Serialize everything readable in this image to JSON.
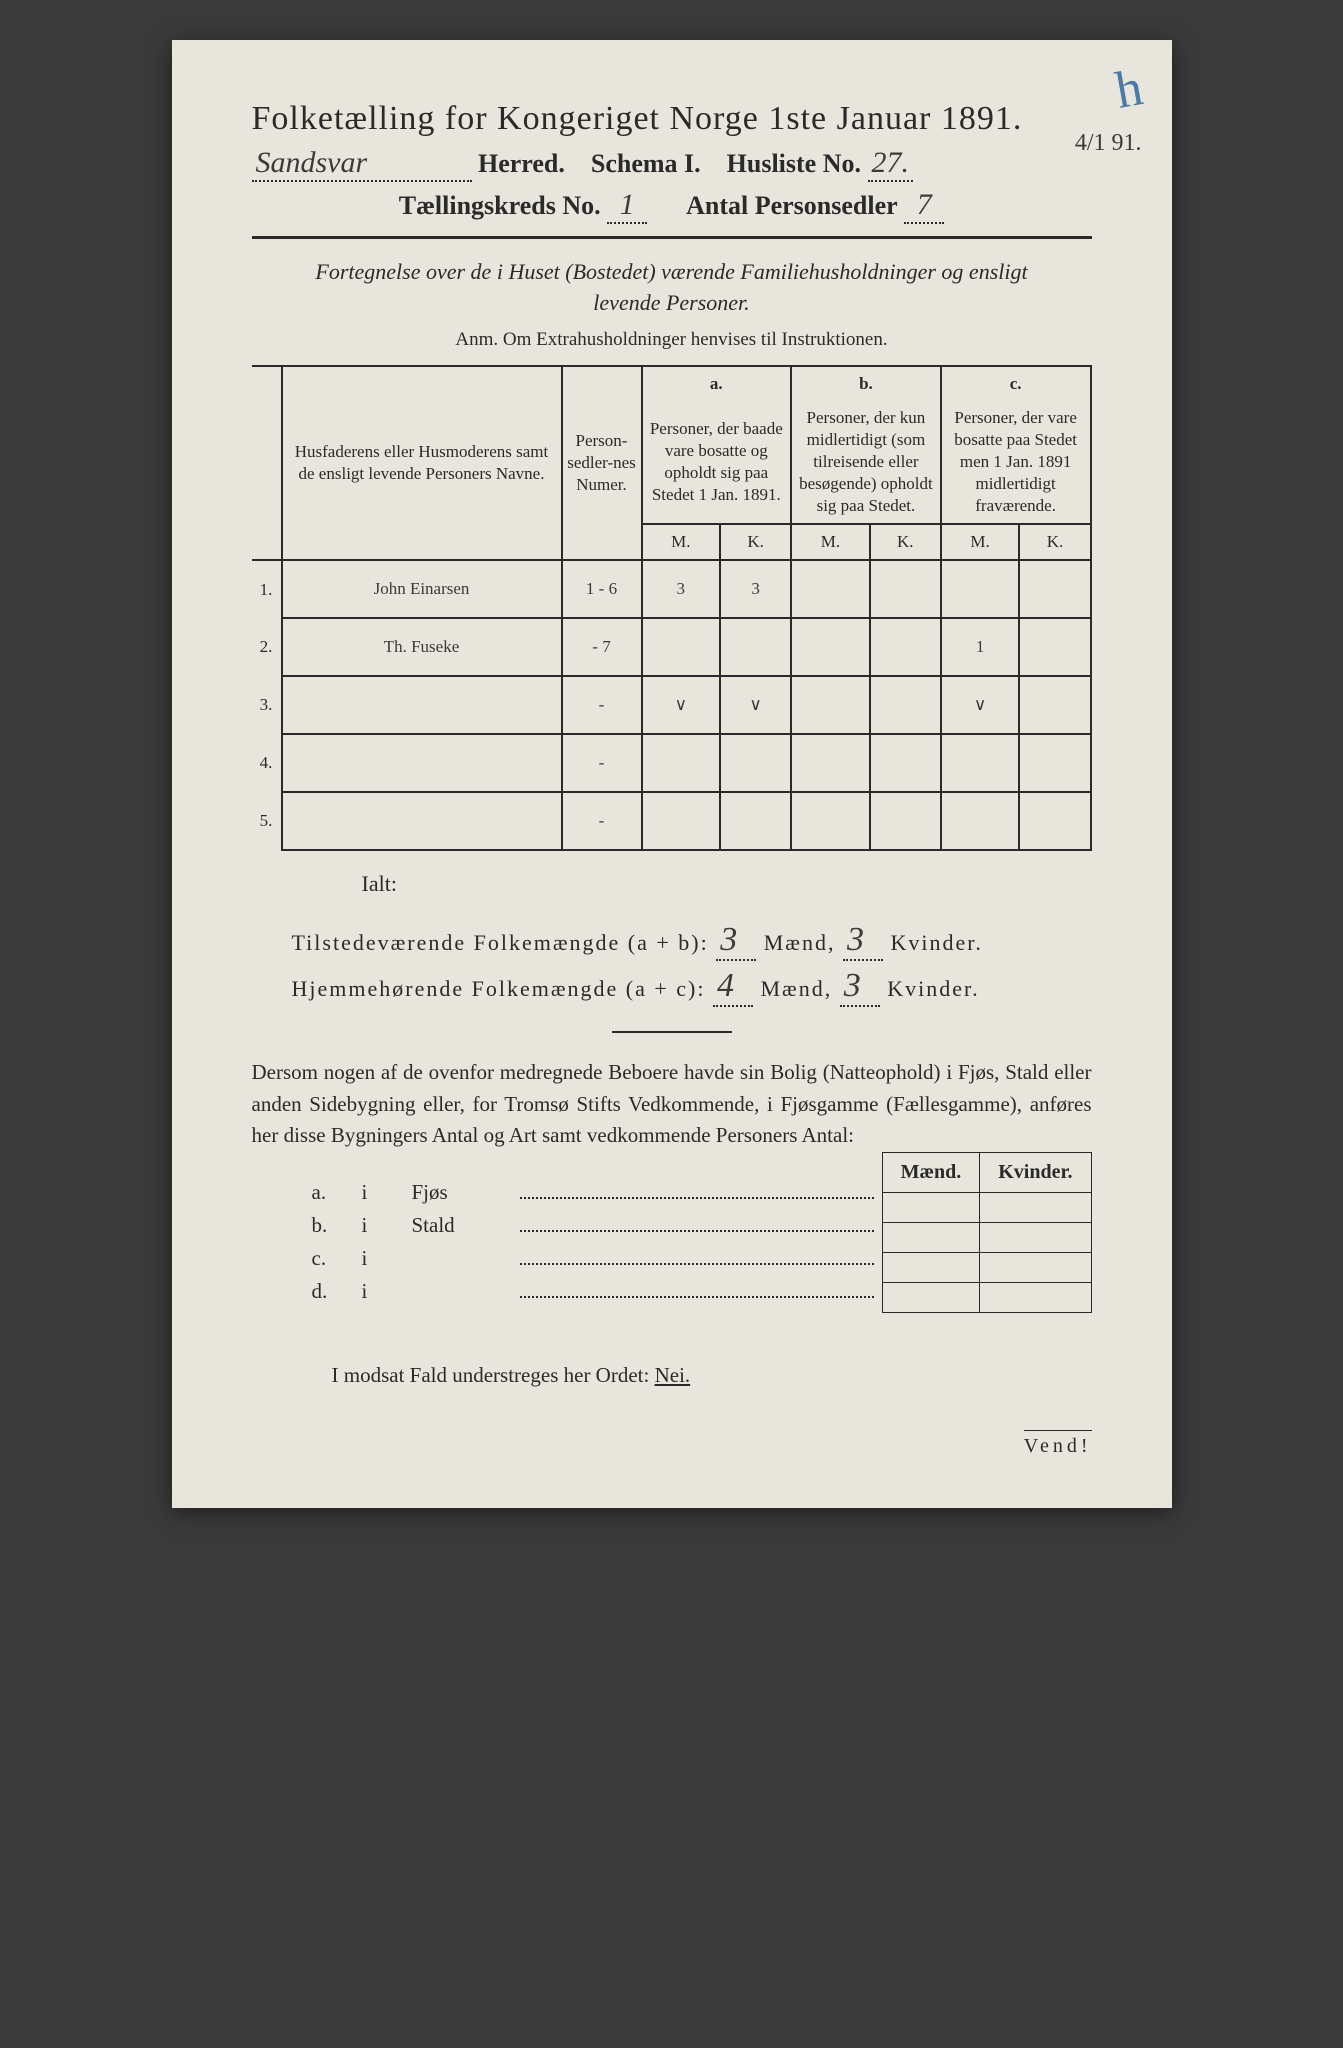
{
  "corner_mark": "h",
  "margin_date": "4/1 91.",
  "title": "Folketælling for Kongeriget Norge 1ste Januar 1891.",
  "header": {
    "herred_value": "Sandsvar",
    "herred_label": "Herred.",
    "schema_label": "Schema I.",
    "husliste_label": "Husliste No.",
    "husliste_value": "27.",
    "kreds_label": "Tællingskreds No.",
    "kreds_value": "1",
    "antal_label": "Antal Personsedler",
    "antal_value": "7"
  },
  "intro_line1": "Fortegnelse over de i Huset (Bostedet) værende Familiehusholdninger og ensligt",
  "intro_line2": "levende Personer.",
  "anm": "Anm. Om Extrahusholdninger henvises til Instruktionen.",
  "table": {
    "head_names": "Husfaderens eller Husmoderens samt de ensligt levende Personers Navne.",
    "head_numer": "Person-sedler-nes Numer.",
    "col_a_letter": "a.",
    "col_a": "Personer, der baade vare bosatte og opholdt sig paa Stedet 1 Jan. 1891.",
    "col_b_letter": "b.",
    "col_b": "Personer, der kun midlertidigt (som tilreisende eller besøgende) opholdt sig paa Stedet.",
    "col_c_letter": "c.",
    "col_c": "Personer, der vare bosatte paa Stedet men 1 Jan. 1891 midlertidigt fraværende.",
    "m": "M.",
    "k": "K.",
    "rows": [
      {
        "n": "1.",
        "name": "John Einarsen",
        "numer": "1 - 6",
        "am": "3",
        "ak": "3",
        "bm": "",
        "bk": "",
        "cm": "",
        "ck": ""
      },
      {
        "n": "2.",
        "name": "Th. Fuseke",
        "numer": "- 7",
        "am": "",
        "ak": "",
        "bm": "",
        "bk": "",
        "cm": "1",
        "ck": ""
      },
      {
        "n": "3.",
        "name": "",
        "numer": "-",
        "am": "∨",
        "ak": "∨",
        "bm": "",
        "bk": "",
        "cm": "∨",
        "ck": ""
      },
      {
        "n": "4.",
        "name": "",
        "numer": "-",
        "am": "",
        "ak": "",
        "bm": "",
        "bk": "",
        "cm": "",
        "ck": ""
      },
      {
        "n": "5.",
        "name": "",
        "numer": "-",
        "am": "",
        "ak": "",
        "bm": "",
        "bk": "",
        "cm": "",
        "ck": ""
      }
    ]
  },
  "ialt": "Ialt:",
  "totals": {
    "tilstede_label": "Tilstedeværende Folkemængde (a + b):",
    "tilstede_m": "3",
    "tilstede_k": "3",
    "hjemme_label": "Hjemmehørende Folkemængde (a + c):",
    "hjemme_m": "4",
    "hjemme_k": "3",
    "maend": "Mænd,",
    "kvinder": "Kvinder."
  },
  "body_text": "Dersom nogen af de ovenfor medregnede Beboere havde sin Bolig (Natteophold) i Fjøs, Stald eller anden Sidebygning eller, for Tromsø Stifts Vedkommende, i Fjøsgamme (Fællesgamme), anføres her disse Bygningers Antal og Art samt vedkommende Personers Antal:",
  "mk_head_m": "Mænd.",
  "mk_head_k": "Kvinder.",
  "side_buildings": [
    {
      "letter": "a.",
      "i": "i",
      "name": "Fjøs"
    },
    {
      "letter": "b.",
      "i": "i",
      "name": "Stald"
    },
    {
      "letter": "c.",
      "i": "i",
      "name": ""
    },
    {
      "letter": "d.",
      "i": "i",
      "name": ""
    }
  ],
  "nei_line_prefix": "I modsat Fald understreges her Ordet: ",
  "nei": "Nei.",
  "vend": "Vend!"
}
